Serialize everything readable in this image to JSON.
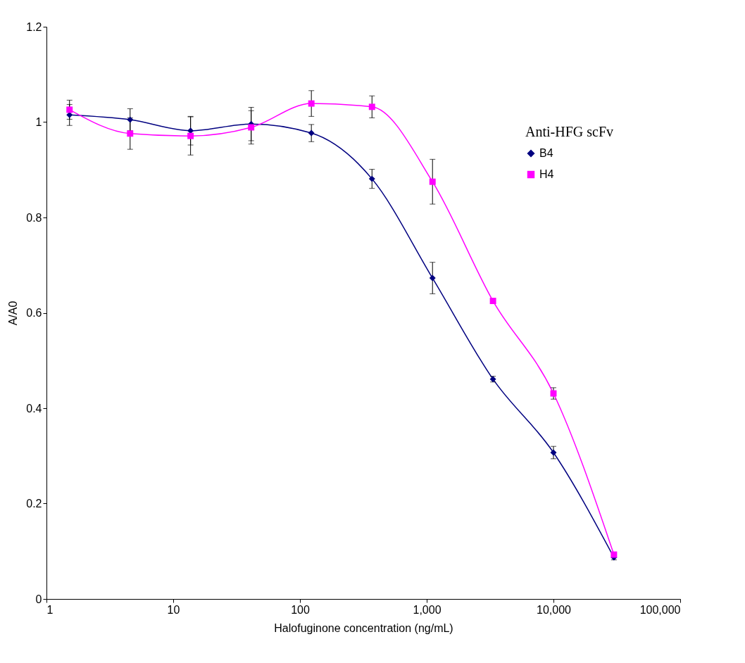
{
  "chart_data": {
    "type": "line",
    "xlabel": "Halofuginone concentration (ng/mL)",
    "ylabel": "A/A0",
    "legend_title": "Anti-HFG scFv",
    "legend": "top right",
    "log": "x",
    "grid": false,
    "x": [
      1.52,
      4.57,
      13.7,
      41.2,
      123,
      370,
      1111,
      3333,
      10000,
      30000
    ],
    "xlim": [
      1,
      100000
    ],
    "xticks": [
      1,
      10,
      {
        "value": 100,
        "label": "100"
      },
      {
        "value": 1000,
        "label": "1,000"
      },
      {
        "value": 10000,
        "label": "10,000"
      },
      {
        "value": 100000,
        "label": "100,000"
      }
    ],
    "ylim": [
      0,
      1.2
    ],
    "yticks": [
      0,
      0.2,
      0.4,
      0.6,
      0.8,
      1,
      1.2
    ],
    "series": [
      {
        "name": "B4",
        "color": "#000080",
        "marker": "diamond",
        "values": [
          1.015,
          1.005,
          0.982,
          0.996,
          0.977,
          0.881,
          0.673,
          0.461,
          0.307,
          0.087
        ],
        "errors": [
          0.022,
          0.023,
          0.03,
          0.035,
          0.018,
          0.02,
          0.033,
          0.006,
          0.013,
          0.005
        ]
      },
      {
        "name": "H4",
        "color": "#ff00ff",
        "marker": "square",
        "values": [
          1.026,
          0.976,
          0.971,
          0.989,
          1.039,
          1.032,
          0.875,
          0.625,
          0.431,
          0.093
        ],
        "errors": [
          0.02,
          0.033,
          0.04,
          0.035,
          0.027,
          0.023,
          0.047,
          null,
          0.012,
          null
        ]
      }
    ]
  }
}
